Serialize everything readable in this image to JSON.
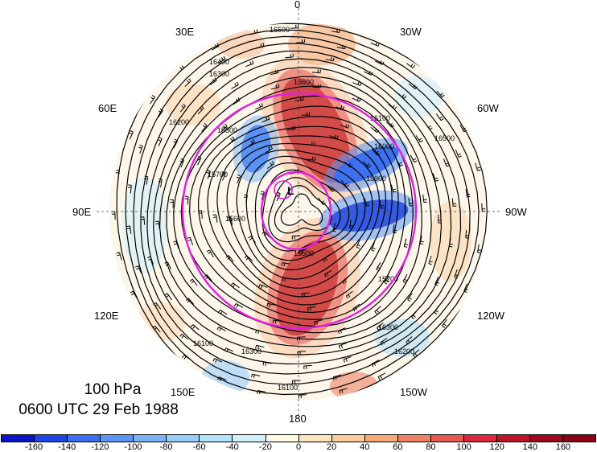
{
  "map": {
    "projection": "north-polar-stereographic",
    "level_label": "100 hPa",
    "time_label": "0600 UTC 29 Feb 1988",
    "longitude_labels": [
      "0",
      "30W",
      "60W",
      "90W",
      "120W",
      "150W",
      "180",
      "150E",
      "120E",
      "90E",
      "60E",
      "30E"
    ],
    "low_marker": "L",
    "contour_labels": [
      "16400",
      "16500",
      "16300",
      "16200",
      "16100",
      "16000",
      "15900",
      "15800",
      "15700",
      "15600",
      "15500",
      "15200",
      "16100",
      "16300",
      "16400",
      "16500",
      "16300",
      "16200",
      "16100",
      "16600"
    ],
    "overlay_color": "#e020e0",
    "shading": "anomaly (red positive, blue negative)"
  },
  "colorbar": {
    "colors": [
      "#0a14c8",
      "#1e46e6",
      "#3c6ef0",
      "#5a96f5",
      "#78b4f5",
      "#96cdfa",
      "#b4e1fa",
      "#d2f0fa",
      "#fffae6",
      "#fde6be",
      "#facd9b",
      "#f5aa78",
      "#f08264",
      "#e65a50",
      "#dc283c",
      "#be1428",
      "#a0081e",
      "#8c0014"
    ],
    "tick_labels": [
      "-160",
      "-140",
      "-120",
      "-100",
      "-80",
      "-60",
      "-40",
      "-20",
      "0",
      "20",
      "40",
      "60",
      "80",
      "100",
      "120",
      "140",
      "160"
    ]
  }
}
